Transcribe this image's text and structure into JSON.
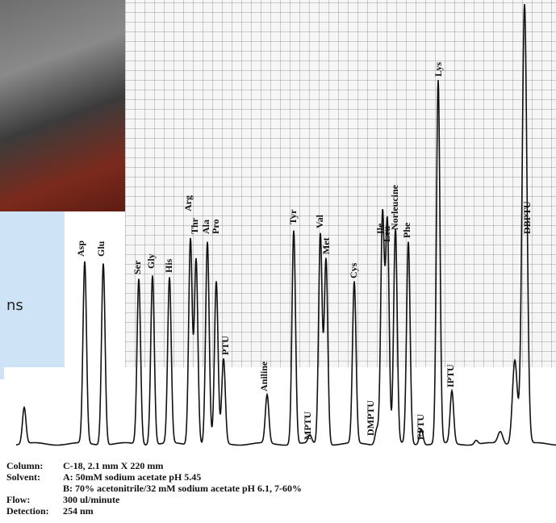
{
  "side_text": "ns",
  "peaks": [
    "Asp",
    "Glu",
    "Ser",
    "Gly",
    "His",
    "Arg",
    "Thr",
    "Ala",
    "Pro",
    "PTU",
    "Aniline",
    "Tyr",
    "MPTU",
    "Val",
    "Met",
    "Cys",
    "DMPTU",
    "Ile",
    "Leu",
    "Norleucine",
    "Phe",
    "EPTU",
    "Lys",
    "IPTU",
    "DBPTU"
  ],
  "conditions": [
    {
      "label": "Column:",
      "text": "C-18, 2.1 mm X 220 mm"
    },
    {
      "label": "Solvent:",
      "text": "A:  50mM sodium acetate pH 5.45"
    },
    {
      "text": "B:  70% acetonitrile/32 mM sodium acetate pH 6.1, 7-60%"
    },
    {
      "label": "Flow:",
      "text": "300 ul/minute"
    },
    {
      "label": "Detection:",
      "text": "254 nm"
    }
  ]
}
